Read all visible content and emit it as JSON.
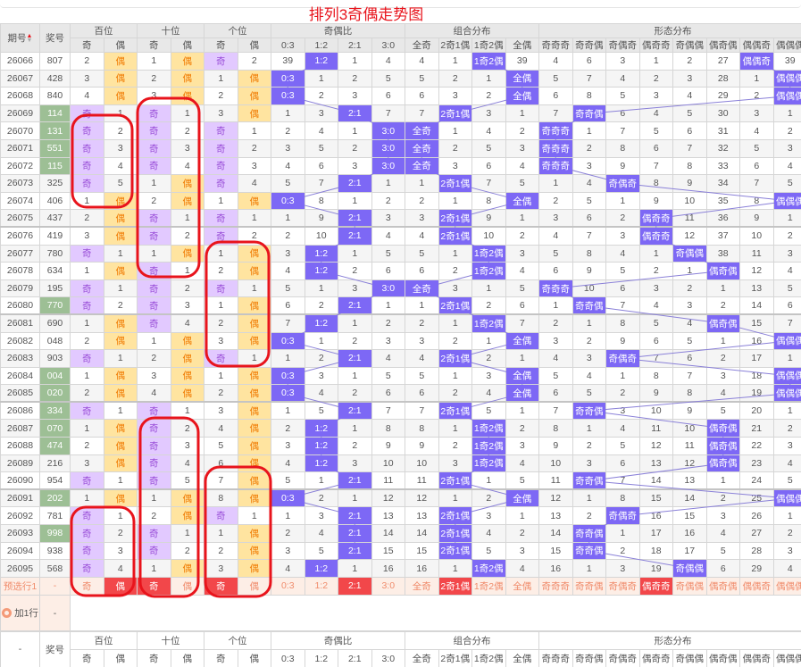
{
  "title": "排列3奇偶走势图",
  "header": {
    "issue": "期号",
    "number": "奖号",
    "groups": [
      "百位",
      "十位",
      "个位",
      "奇偶比",
      "组合分布",
      "形态分布"
    ],
    "sub": [
      "奇",
      "偶",
      "奇",
      "偶",
      "奇",
      "偶",
      "0:3",
      "1:2",
      "2:1",
      "3:0",
      "全奇",
      "2奇1偶",
      "1奇2偶",
      "全偶",
      "奇奇奇",
      "奇奇偶",
      "奇偶奇",
      "偶奇奇",
      "奇偶偶",
      "偶奇偶",
      "偶偶奇",
      "偶偶偶"
    ]
  },
  "colors": {
    "odd_bg": "#e2c9ff",
    "even_bg": "#ffe4a0",
    "hit_bg": "#7d68f5",
    "pair_number_bg": "#9dbf95",
    "preselect_red": "#f2474a",
    "title": "#e8141c",
    "annotation": "#e8141c"
  },
  "rows": [
    {
      "issue": "26066",
      "num": "807",
      "cells": [
        2,
        "偶",
        1,
        "偶",
        "奇",
        2,
        39,
        "1:2",
        1,
        4,
        4,
        1,
        "1奇2偶",
        39,
        4,
        6,
        3,
        1,
        2,
        27,
        "偶偶奇",
        39
      ]
    },
    {
      "issue": "26067",
      "num": "428",
      "cells": [
        3,
        "偶",
        2,
        "偶",
        1,
        "偶",
        "0:3",
        1,
        2,
        5,
        5,
        2,
        1,
        "全偶",
        5,
        7,
        4,
        2,
        3,
        28,
        1,
        "偶偶偶"
      ]
    },
    {
      "issue": "26068",
      "num": "840",
      "cells": [
        4,
        "偶",
        3,
        "偶",
        2,
        "偶",
        "0:3",
        2,
        3,
        6,
        6,
        3,
        2,
        "全偶",
        6,
        8,
        5,
        3,
        4,
        29,
        2,
        "偶偶偶"
      ]
    },
    {
      "issue": "26069",
      "num": "114",
      "cells": [
        "奇",
        1,
        "奇",
        1,
        3,
        "偶",
        1,
        3,
        "2:1",
        7,
        7,
        "2奇1偶",
        3,
        1,
        7,
        "奇奇偶",
        6,
        4,
        5,
        30,
        3,
        1
      ]
    },
    {
      "issue": "26070",
      "num": "131",
      "cells": [
        "奇",
        2,
        "奇",
        2,
        "奇",
        1,
        2,
        4,
        1,
        "3:0",
        "全奇",
        1,
        4,
        2,
        "奇奇奇",
        1,
        7,
        5,
        6,
        31,
        4,
        2
      ]
    },
    {
      "issue": "26071",
      "num": "551",
      "cells": [
        "奇",
        3,
        "奇",
        3,
        "奇",
        2,
        3,
        5,
        2,
        "3:0",
        "全奇",
        2,
        5,
        3,
        "奇奇奇",
        2,
        8,
        6,
        7,
        32,
        5,
        3
      ]
    },
    {
      "issue": "26072",
      "num": "115",
      "cells": [
        "奇",
        4,
        "奇",
        4,
        "奇",
        3,
        4,
        6,
        3,
        "3:0",
        "全奇",
        3,
        6,
        4,
        "奇奇奇",
        3,
        9,
        7,
        8,
        33,
        6,
        4
      ]
    },
    {
      "issue": "26073",
      "num": "325",
      "cells": [
        "奇",
        5,
        1,
        "偶",
        "奇",
        4,
        5,
        7,
        "2:1",
        1,
        1,
        "2奇1偶",
        7,
        5,
        1,
        4,
        "奇偶奇",
        8,
        9,
        34,
        7,
        5
      ]
    },
    {
      "issue": "26074",
      "num": "406",
      "cells": [
        1,
        "偶",
        2,
        "偶",
        1,
        "偶",
        "0:3",
        8,
        1,
        2,
        2,
        1,
        8,
        "全偶",
        2,
        5,
        1,
        9,
        10,
        35,
        8,
        "偶偶偶"
      ]
    },
    {
      "issue": "26075",
      "num": "437",
      "cells": [
        2,
        "偶",
        "奇",
        1,
        "奇",
        1,
        1,
        9,
        "2:1",
        3,
        3,
        "2奇1偶",
        9,
        1,
        3,
        6,
        2,
        "偶奇奇",
        11,
        36,
        9,
        1
      ]
    },
    {
      "issue": "26076",
      "num": "419",
      "cells": [
        3,
        "偶",
        "奇",
        2,
        "奇",
        2,
        2,
        10,
        "2:1",
        4,
        4,
        "2奇1偶",
        10,
        2,
        4,
        7,
        3,
        "偶奇奇",
        12,
        37,
        10,
        2
      ]
    },
    {
      "issue": "26077",
      "num": "780",
      "cells": [
        "奇",
        1,
        1,
        "偶",
        1,
        "偶",
        3,
        "1:2",
        1,
        5,
        5,
        1,
        "1奇2偶",
        3,
        5,
        8,
        4,
        1,
        "奇偶偶",
        38,
        11,
        3
      ]
    },
    {
      "issue": "26078",
      "num": "634",
      "cells": [
        1,
        "偶",
        "奇",
        1,
        2,
        "偶",
        4,
        "1:2",
        2,
        6,
        6,
        2,
        "1奇2偶",
        4,
        6,
        9,
        5,
        2,
        1,
        "偶奇偶",
        12,
        4
      ]
    },
    {
      "issue": "26079",
      "num": "195",
      "cells": [
        "奇",
        1,
        "奇",
        2,
        "奇",
        1,
        5,
        1,
        3,
        "3:0",
        "全奇",
        3,
        1,
        5,
        "奇奇奇",
        10,
        6,
        3,
        2,
        1,
        13,
        5
      ]
    },
    {
      "issue": "26080",
      "num": "770",
      "cells": [
        "奇",
        2,
        "奇",
        3,
        1,
        "偶",
        6,
        2,
        "2:1",
        1,
        1,
        "2奇1偶",
        2,
        6,
        1,
        "奇奇偶",
        7,
        4,
        3,
        2,
        14,
        6
      ]
    },
    {
      "issue": "26081",
      "num": "690",
      "cells": [
        1,
        "偶",
        "奇",
        4,
        2,
        "偶",
        7,
        "1:2",
        1,
        2,
        2,
        1,
        "1奇2偶",
        7,
        2,
        1,
        8,
        5,
        4,
        "偶奇偶",
        15,
        7
      ]
    },
    {
      "issue": "26082",
      "num": "048",
      "cells": [
        2,
        "偶",
        1,
        "偶",
        3,
        "偶",
        "0:3",
        1,
        2,
        3,
        3,
        2,
        1,
        "全偶",
        3,
        2,
        9,
        6,
        5,
        1,
        16,
        "偶偶偶"
      ]
    },
    {
      "issue": "26083",
      "num": "903",
      "cells": [
        "奇",
        1,
        2,
        "偶",
        "奇",
        1,
        1,
        2,
        "2:1",
        4,
        4,
        "2奇1偶",
        2,
        1,
        4,
        3,
        "奇偶奇",
        7,
        6,
        2,
        17,
        1
      ]
    },
    {
      "issue": "26084",
      "num": "004",
      "cells": [
        1,
        "偶",
        3,
        "偶",
        1,
        "偶",
        "0:3",
        3,
        1,
        5,
        5,
        1,
        3,
        "全偶",
        5,
        4,
        1,
        8,
        7,
        3,
        18,
        "偶偶偶"
      ]
    },
    {
      "issue": "26085",
      "num": "020",
      "cells": [
        2,
        "偶",
        4,
        "偶",
        2,
        "偶",
        "0:3",
        4,
        2,
        6,
        6,
        2,
        4,
        "全偶",
        6,
        5,
        2,
        9,
        8,
        4,
        19,
        "偶偶偶"
      ]
    },
    {
      "issue": "26086",
      "num": "334",
      "cells": [
        "奇",
        1,
        "奇",
        1,
        3,
        "偶",
        1,
        5,
        "2:1",
        7,
        7,
        "2奇1偶",
        5,
        1,
        7,
        "奇奇偶",
        3,
        10,
        9,
        5,
        20,
        1
      ]
    },
    {
      "issue": "26087",
      "num": "070",
      "cells": [
        1,
        "偶",
        "奇",
        2,
        4,
        "偶",
        2,
        "1:2",
        1,
        8,
        8,
        1,
        "1奇2偶",
        2,
        8,
        1,
        4,
        11,
        10,
        "偶奇偶",
        21,
        2
      ]
    },
    {
      "issue": "26088",
      "num": "474",
      "cells": [
        2,
        "偶",
        "奇",
        3,
        5,
        "偶",
        3,
        "1:2",
        2,
        9,
        9,
        2,
        "1奇2偶",
        3,
        9,
        2,
        5,
        12,
        11,
        "偶奇偶",
        22,
        3
      ]
    },
    {
      "issue": "26089",
      "num": "216",
      "cells": [
        3,
        "偶",
        "奇",
        4,
        6,
        "偶",
        4,
        "1:2",
        3,
        10,
        10,
        3,
        "1奇2偶",
        4,
        10,
        3,
        6,
        13,
        12,
        "偶奇偶",
        23,
        4
      ]
    },
    {
      "issue": "26090",
      "num": "954",
      "cells": [
        "奇",
        1,
        "奇",
        5,
        7,
        "偶",
        5,
        1,
        "2:1",
        11,
        11,
        "2奇1偶",
        1,
        5,
        11,
        "奇奇偶",
        7,
        14,
        13,
        1,
        24,
        5
      ]
    },
    {
      "issue": "26091",
      "num": "202",
      "cells": [
        1,
        "偶",
        1,
        "偶",
        8,
        "偶",
        "0:3",
        2,
        1,
        12,
        12,
        1,
        2,
        "全偶",
        12,
        1,
        8,
        15,
        14,
        2,
        25,
        "偶偶偶"
      ]
    },
    {
      "issue": "26092",
      "num": "781",
      "cells": [
        "奇",
        1,
        2,
        "偶",
        "奇",
        1,
        1,
        3,
        "2:1",
        13,
        13,
        "2奇1偶",
        3,
        1,
        13,
        2,
        "奇偶奇",
        16,
        15,
        3,
        26,
        1
      ]
    },
    {
      "issue": "26093",
      "num": "998",
      "cells": [
        "奇",
        2,
        "奇",
        1,
        1,
        "偶",
        2,
        4,
        "2:1",
        14,
        14,
        "2奇1偶",
        4,
        2,
        14,
        "奇奇偶",
        1,
        17,
        16,
        4,
        27,
        2
      ]
    },
    {
      "issue": "26094",
      "num": "938",
      "cells": [
        "奇",
        3,
        "奇",
        2,
        2,
        "偶",
        3,
        5,
        "2:1",
        15,
        15,
        "2奇1偶",
        5,
        3,
        15,
        "奇奇偶",
        2,
        18,
        17,
        5,
        28,
        3
      ]
    },
    {
      "issue": "26095",
      "num": "568",
      "cells": [
        "奇",
        4,
        1,
        "偶",
        3,
        "偶",
        4,
        "1:2",
        1,
        16,
        16,
        1,
        "1奇2偶",
        4,
        16,
        1,
        3,
        19,
        "奇偶偶",
        6,
        29,
        4
      ]
    }
  ],
  "preselect": {
    "label": "预选行1",
    "number": "-",
    "selected": [
      1,
      2,
      4,
      8,
      11,
      17
    ]
  },
  "add_row": {
    "label": "加1行",
    "icon": "add-circle-icon",
    "number": "-"
  },
  "footer": {
    "issue": "-"
  }
}
